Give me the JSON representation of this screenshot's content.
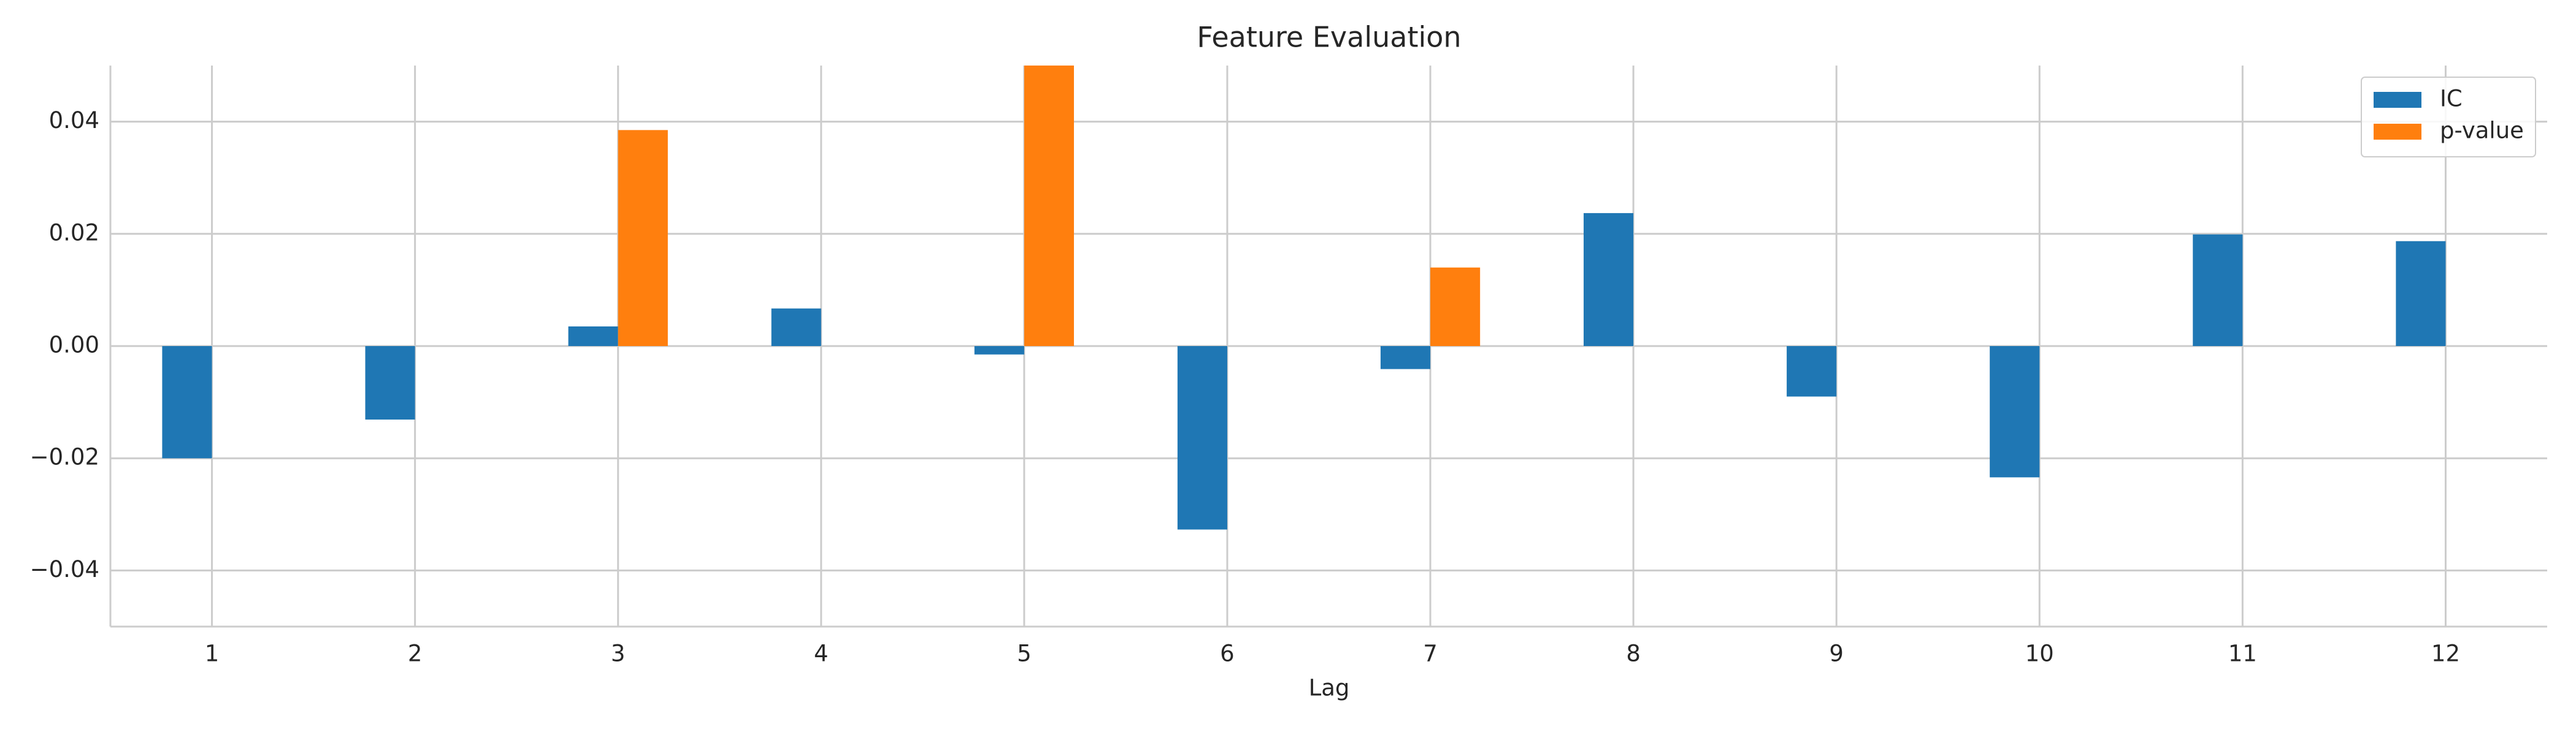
{
  "chart_data": {
    "type": "bar",
    "title": "Feature Evaluation",
    "x_label": "Lag",
    "categories": [
      "1",
      "2",
      "3",
      "4",
      "5",
      "6",
      "7",
      "8",
      "9",
      "10",
      "11",
      "12"
    ],
    "series": [
      {
        "name": "IC",
        "color": "#1f77b4",
        "values": [
          -0.02,
          -0.0131,
          0.0035,
          0.0067,
          -0.0015,
          -0.0327,
          -0.0041,
          0.0237,
          -0.009,
          -0.0234,
          0.0199,
          0.0187
        ]
      },
      {
        "name": "p-value",
        "color": "#ff7f0e",
        "values": [
          0,
          0,
          0.0385,
          0,
          0.05,
          0,
          0.014,
          0,
          0,
          0,
          0,
          0
        ]
      }
    ],
    "ylim": [
      -0.05,
      0.05
    ],
    "yticks": [
      {
        "value": -0.04,
        "label": "−0.04"
      },
      {
        "value": -0.02,
        "label": "−0.02"
      },
      {
        "value": 0,
        "label": "0.00"
      },
      0.02,
      0.04
    ],
    "grid": true,
    "legend": "upper right"
  }
}
